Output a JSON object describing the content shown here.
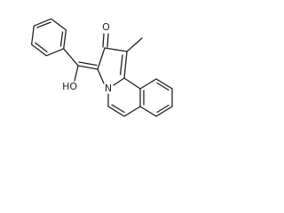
{
  "labels": [
    "O",
    "HO",
    "N"
  ]
}
